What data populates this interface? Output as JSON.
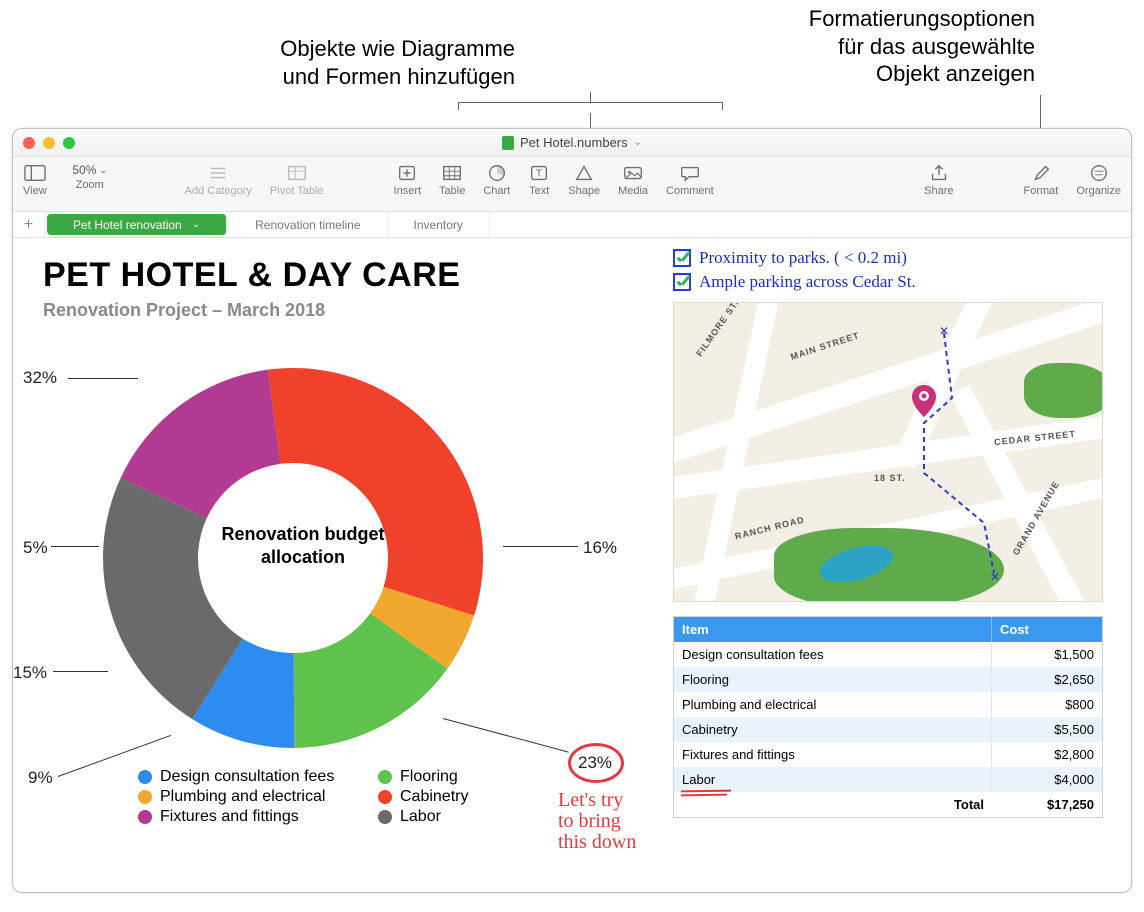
{
  "callouts": {
    "left": "Objekte wie Diagramme\nund Formen hinzufügen",
    "right": "Formatierungsoptionen\nfür das ausgewählte\nObjekt anzeigen"
  },
  "window": {
    "doc_title": "Pet Hotel.numbers"
  },
  "toolbar": {
    "view": "View",
    "zoom": "Zoom",
    "zoom_value": "50%",
    "add_category": "Add Category",
    "pivot_table": "Pivot Table",
    "insert": "Insert",
    "table": "Table",
    "chart": "Chart",
    "text": "Text",
    "shape": "Shape",
    "media": "Media",
    "comment": "Comment",
    "share": "Share",
    "format": "Format",
    "organize": "Organize"
  },
  "sheets": {
    "tab1": "Pet Hotel renovation",
    "tab2": "Renovation timeline",
    "tab3": "Inventory"
  },
  "page": {
    "title": "PET HOTEL & DAY CARE",
    "subtitle": "Renovation Project – March 2018"
  },
  "donut": {
    "type": "donut",
    "center_label": "Renovation budget allocation",
    "inner_radius": 95,
    "outer_radius": 190,
    "slices": [
      {
        "label": "Design consultation fees",
        "value": 9,
        "color": "#2e8cf0",
        "pct": "9%"
      },
      {
        "label": "Flooring",
        "value": 15,
        "color": "#5ec24d",
        "pct": "15%"
      },
      {
        "label": "Plumbing and electrical",
        "value": 5,
        "color": "#f0a92e",
        "pct": "5%"
      },
      {
        "label": "Cabinetry",
        "value": 32,
        "color": "#f0412a",
        "pct": "32%"
      },
      {
        "label": "Fixtures and fittings",
        "value": 16,
        "color": "#b33a92",
        "pct": "16%"
      },
      {
        "label": "Labor",
        "value": 23,
        "color": "#6a6a6a",
        "pct": "23%"
      }
    ],
    "legend_cols": 2
  },
  "handwritten": {
    "note": "Let's try\nto bring\nthis down",
    "circled_value": "23%"
  },
  "checklist": {
    "item1": "Proximity to parks. ( < 0.2 mi)",
    "item2": "Ample parking across  Cedar St."
  },
  "map": {
    "streets": [
      "FILMORE ST.",
      "MAIN STREET",
      "18 ST.",
      "RANCH ROAD",
      "CEDAR STREET",
      "GRAND AVENUE"
    ],
    "pin_color": "#c9307a",
    "bg": "#f4efe5",
    "road_color": "#ffffff",
    "park_color": "#5faa4a",
    "water_color": "#2aa3c4"
  },
  "cost_table": {
    "columns": [
      "Item",
      "Cost"
    ],
    "rows": [
      [
        "Design consultation fees",
        "$1,500"
      ],
      [
        "Flooring",
        "$2,650"
      ],
      [
        "Plumbing and electrical",
        "$800"
      ],
      [
        "Cabinetry",
        "$5,500"
      ],
      [
        "Fixtures and fittings",
        "$2,800"
      ],
      [
        "Labor",
        "$4,000"
      ]
    ],
    "total_label": "Total",
    "total_value": "$17,250",
    "header_bg": "#3a99ef",
    "alt_bg": "#eaf2fb"
  }
}
